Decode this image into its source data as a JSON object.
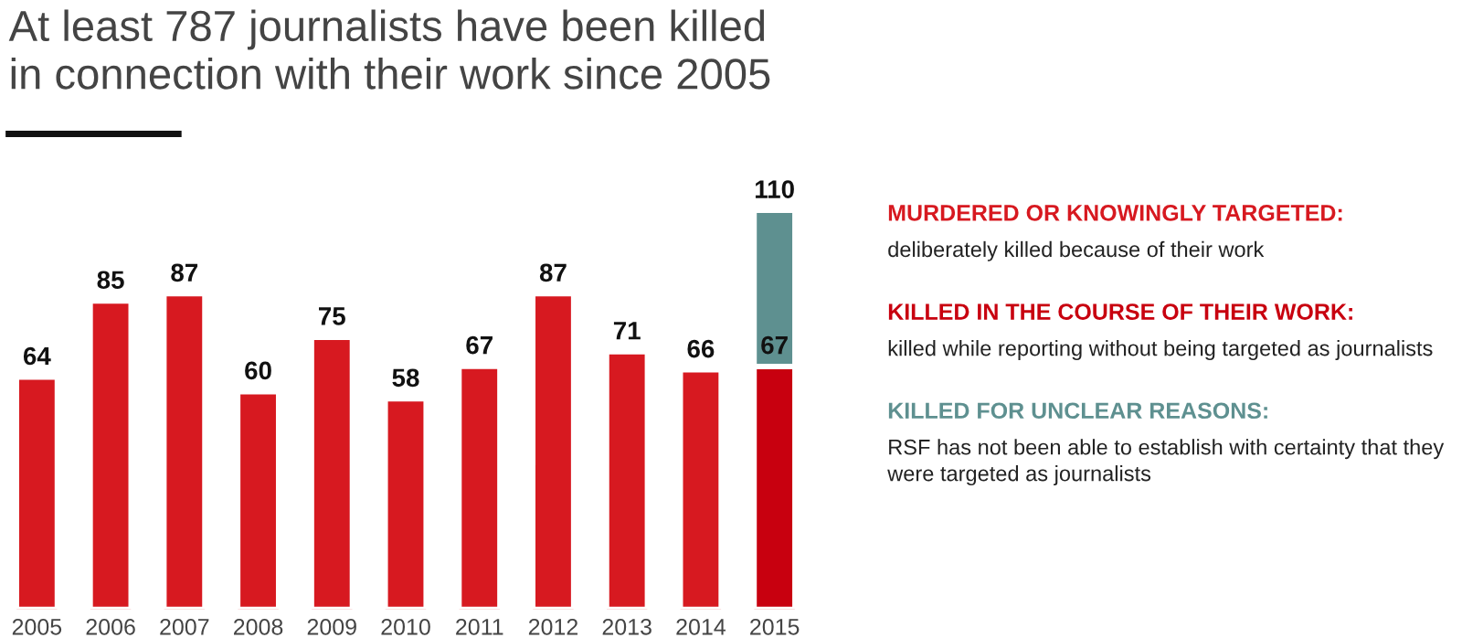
{
  "chart_data": {
    "type": "bar",
    "title": "At least 787 journalists have been killed\nin connection with their work since 2005",
    "categories": [
      "2005",
      "2006",
      "2007",
      "2008",
      "2009",
      "2010",
      "2011",
      "2012",
      "2013",
      "2014",
      "2015"
    ],
    "series": [
      {
        "name": "MURDERED OR KNOWINGLY TARGETED:",
        "color": "#d71920",
        "values": [
          64,
          85,
          87,
          60,
          75,
          58,
          67,
          87,
          71,
          66,
          null
        ],
        "value_labels": [
          "64",
          "85",
          "87",
          "60",
          "75",
          "58",
          "67",
          "87",
          "71",
          "66",
          null
        ]
      },
      {
        "name": "KILLED IN THE COURSE OF THEIR WORK:",
        "color": "#c8000f",
        "values": [
          null,
          null,
          null,
          null,
          null,
          null,
          null,
          null,
          null,
          null,
          67
        ],
        "value_labels": [
          null,
          null,
          null,
          null,
          null,
          null,
          null,
          null,
          null,
          null,
          "67"
        ]
      },
      {
        "name": "KILLED FOR UNCLEAR REASONS:",
        "color": "#5e9090",
        "values": [
          null,
          null,
          null,
          null,
          null,
          null,
          null,
          null,
          null,
          null,
          43
        ]
      }
    ],
    "totals": [
      null,
      null,
      null,
      null,
      null,
      null,
      null,
      null,
      null,
      null,
      "110"
    ],
    "annotations": [
      "deliberately killed because of their work",
      "killed while reporting without being targeted as journalists",
      "RSF has not been able to establish with certainty that they\nwere targeted as journalists"
    ],
    "stacked": true,
    "tick_labels": "x",
    "grid": false,
    "legend": "right"
  }
}
